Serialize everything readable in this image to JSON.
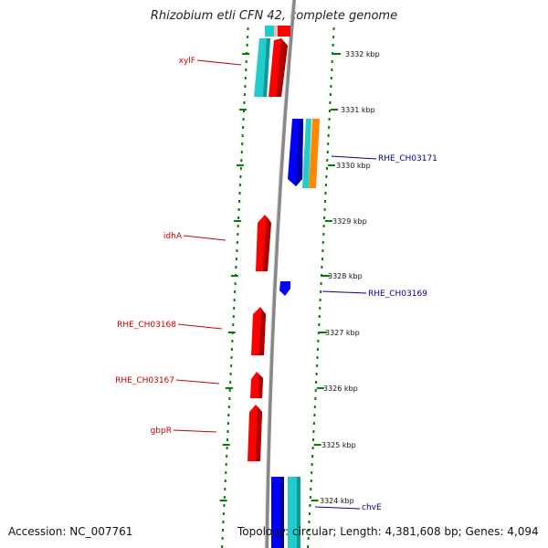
{
  "title": "Rhizobium etli CFN 42, complete genome",
  "footer": {
    "accession": "Accession: NC_007761",
    "info": "Topology: circular; Length: 4,381,608 bp; Genes: 4,094"
  },
  "colors": {
    "forward_gene": "#ff0000",
    "reverse_gene": "#0000ff",
    "cyan_feature": "#22cccc",
    "orange_feature": "#ff8800",
    "backbone": "#888888",
    "gc_ticks": "#008000",
    "forward_label": "#cc0000",
    "reverse_label": "#000099"
  },
  "scale": {
    "unit": "kbp",
    "ticks": [
      "3332 kbp",
      "3331 kbp",
      "3330 kbp",
      "3329 kbp",
      "3328 kbp",
      "3327 kbp",
      "3326 kbp",
      "3325 kbp",
      "3324 kbp"
    ]
  },
  "gene_labels_left": [
    "xylF",
    "idhA",
    "RHE_CH03168",
    "RHE_CH03167",
    "gbpR"
  ],
  "gene_labels_right": [
    "RHE_CH03171",
    "RHE_CH03169",
    "chvE"
  ]
}
